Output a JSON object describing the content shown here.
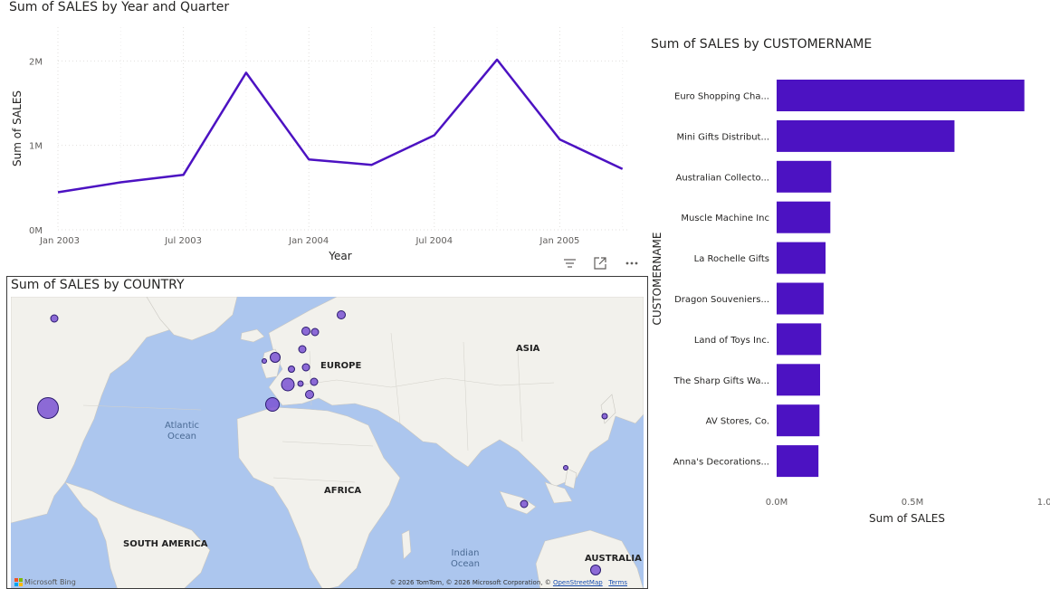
{
  "line_chart": {
    "title": "Sum of SALES by Year and Quarter",
    "xlabel": "Year",
    "ylabel": "Sum of SALES",
    "y_ticks": [
      "0M",
      "1M",
      "2M"
    ],
    "x_ticks": [
      "Jan 2003",
      "Jul 2003",
      "Jan 2004",
      "Jul 2004",
      "Jan 2005"
    ],
    "line_color": "#4c12c2"
  },
  "toolbar": {
    "filter_icon": "filter-icon",
    "focus_icon": "focus-mode-icon",
    "more_icon": "more-options-icon"
  },
  "map": {
    "title": "Sum of SALES by COUNTRY",
    "regions": [
      "ASIA",
      "EUROPE",
      "AFRICA",
      "SOUTH AMERICA",
      "AUSTRALIA"
    ],
    "oceans": [
      [
        "Atlantic",
        "Ocean"
      ],
      [
        "Indian",
        "Ocean"
      ]
    ],
    "logo_text": "Microsoft Bing",
    "attribution_text": "© 2026 TomTom, © 2026 Microsoft Corporation, © ",
    "attribution_link": "OpenStreetMap",
    "terms_link": "Terms",
    "bubble_color": "#7a52d2"
  },
  "bar_chart": {
    "title": "Sum of SALES by CUSTOMERNAME",
    "xlabel": "Sum of SALES",
    "ylabel": "CUSTOMERNAME",
    "x_ticks": [
      "0.0M",
      "0.5M",
      "1.0M"
    ],
    "bar_color": "#4c12c2"
  },
  "chart_data": [
    {
      "type": "line",
      "title": "Sum of SALES by Year and Quarter",
      "xlabel": "Year",
      "ylabel": "Sum of SALES",
      "x": [
        "2003 Q1",
        "2003 Q2",
        "2003 Q3",
        "2003 Q4",
        "2004 Q1",
        "2004 Q2",
        "2004 Q3",
        "2004 Q4",
        "2005 Q1",
        "2005 Q2"
      ],
      "values": [
        445000,
        563000,
        650000,
        1860000,
        834000,
        769000,
        1120000,
        2015000,
        1070000,
        720000
      ],
      "ylim": [
        0,
        2400000
      ],
      "grid": true
    },
    {
      "type": "bar",
      "title": "Sum of SALES by CUSTOMERNAME",
      "xlabel": "Sum of SALES",
      "ylabel": "CUSTOMERNAME",
      "categories": [
        "Euro Shopping Cha...",
        "Mini Gifts Distribut...",
        "Australian Collecto...",
        "Muscle Machine Inc",
        "La Rochelle Gifts",
        "Dragon Souveniers...",
        "Land of Toys Inc.",
        "The Sharp Gifts Wa...",
        "AV Stores, Co.",
        "Anna's Decorations..."
      ],
      "values": [
        912294,
        654858,
        200995,
        197736,
        180125,
        172990,
        164070,
        160010,
        157807,
        153996
      ],
      "xlim": [
        0,
        1000000
      ],
      "grid": false
    }
  ]
}
